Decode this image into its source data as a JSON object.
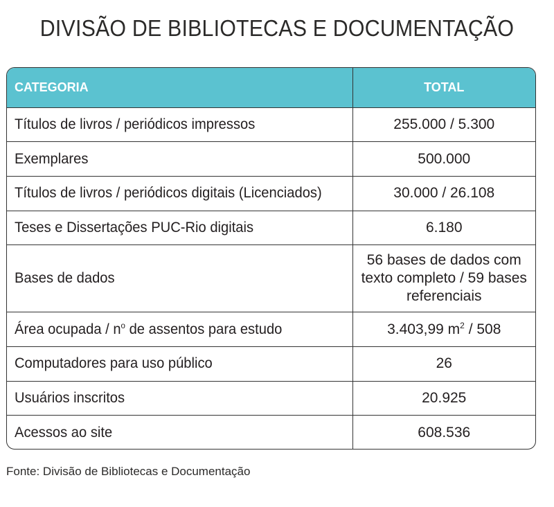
{
  "title": "DIVISÃO DE BIBLIOTECAS E DOCUMENTAÇÃO",
  "table": {
    "headers": {
      "category": "CATEGORIA",
      "total": "TOTAL"
    },
    "header_color": "#5bc2d0",
    "rows": [
      {
        "category": "Títulos de livros / periódicos impressos",
        "total": "255.000 / 5.300"
      },
      {
        "category": "Exemplares",
        "total": "500.000"
      },
      {
        "category": "Títulos de livros / periódicos digitais (Licenciados)",
        "total": "30.000 / 26.108"
      },
      {
        "category": "Teses e Dissertações PUC-Rio digitais",
        "total": "6.180"
      },
      {
        "category": "Bases de dados",
        "total": "56 bases de dados com texto completo / 59 bases referenciais"
      },
      {
        "category_prefix": "Área ocupada / n",
        "category_sup": "o",
        "category_suffix": " de assentos para estudo",
        "total_prefix": "3.403,99 m",
        "total_sup": "2",
        "total_suffix": " / 508"
      },
      {
        "category": "Computadores para uso público",
        "total": "26"
      },
      {
        "category": "Usuários inscritos",
        "total": "20.925"
      },
      {
        "category": "Acessos ao site",
        "total": "608.536"
      }
    ]
  },
  "source": "Fonte: Divisão de Bibliotecas e Documentação"
}
